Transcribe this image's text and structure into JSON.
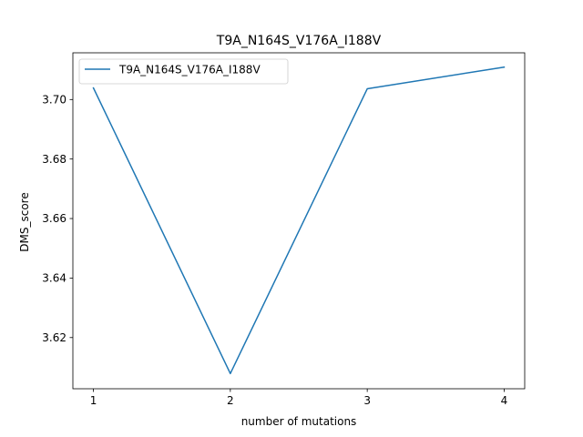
{
  "chart_data": {
    "type": "line",
    "title": "T9A_N164S_V176A_I188V",
    "xlabel": "number of mutations",
    "ylabel": "DMS_score",
    "x": [
      1,
      2,
      3,
      4
    ],
    "xticks": [
      "1",
      "2",
      "3",
      "4"
    ],
    "yticks": [
      "3.62",
      "3.64",
      "3.66",
      "3.68",
      "3.70"
    ],
    "xlim": [
      0.85,
      4.15
    ],
    "ylim": [
      3.6028,
      3.7157
    ],
    "grid": false,
    "legend_position": "upper-left",
    "series": [
      {
        "name": "T9A_N164S_V176A_I188V",
        "color": "#1f77b4",
        "values": [
          3.7039,
          3.6079,
          3.7036,
          3.7109
        ]
      }
    ]
  }
}
